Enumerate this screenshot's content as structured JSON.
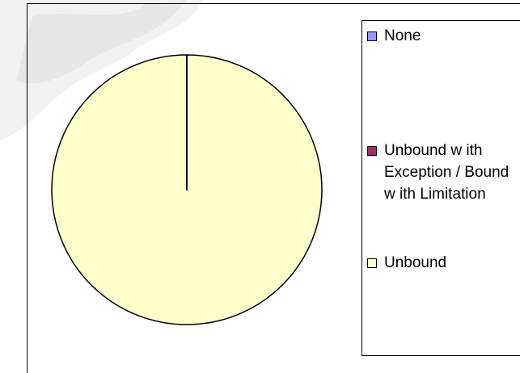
{
  "chart_data": {
    "type": "pie",
    "categories": [
      "None",
      "Unbound w ith Exception / Bound w ith Limitation",
      "Unbound"
    ],
    "values": [
      0,
      0,
      100
    ],
    "colors": [
      "#9999ff",
      "#993366",
      "#ffffcc"
    ],
    "legend": "right"
  }
}
